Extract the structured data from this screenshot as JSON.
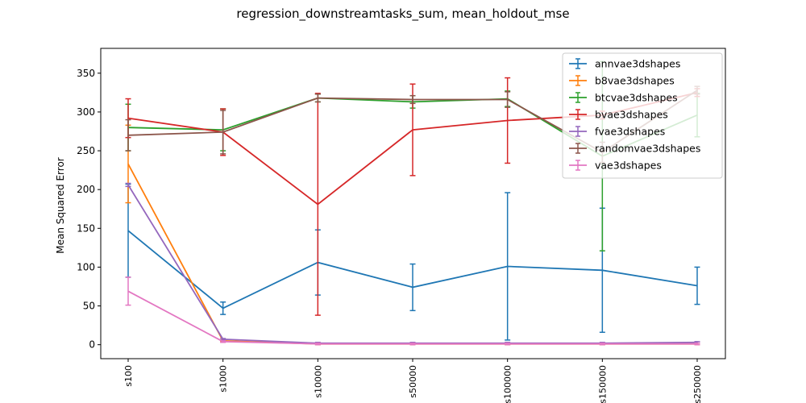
{
  "chart_data": {
    "type": "line",
    "title": "regression_downstreamtasks_sum, mean_holdout_mse",
    "xlabel": "",
    "ylabel": "Mean Squared Error",
    "categories": [
      "s100",
      "s1000",
      "s10000",
      "s50000",
      "s100000",
      "s150000",
      "s250000"
    ],
    "ylim": [
      -18,
      382
    ],
    "yticks": [
      0,
      50,
      100,
      150,
      200,
      250,
      300,
      350
    ],
    "grid": false,
    "legend_position": "top-right",
    "series": [
      {
        "name": "annvae3dshapes",
        "color": "#1f77b4",
        "values": [
          147,
          47,
          106,
          74,
          101,
          96,
          76
        ],
        "err": [
          60,
          8,
          42,
          30,
          95,
          80,
          24
        ]
      },
      {
        "name": "b8vae3dshapes",
        "color": "#ff7f0e",
        "values": [
          233,
          5,
          1,
          1,
          1,
          1,
          1
        ],
        "err": [
          50,
          1,
          1,
          1,
          1,
          1,
          1
        ]
      },
      {
        "name": "btcvae3dshapes",
        "color": "#2ca02c",
        "values": [
          280,
          277,
          318,
          313,
          317,
          243,
          296
        ],
        "err": [
          30,
          27,
          5,
          8,
          10,
          122,
          28
        ]
      },
      {
        "name": "bvae3dshapes",
        "color": "#d62728",
        "values": [
          292,
          274,
          181,
          277,
          289,
          296,
          325
        ],
        "err": [
          25,
          30,
          143,
          59,
          55,
          5,
          5
        ]
      },
      {
        "name": "fvae3dshapes",
        "color": "#9467bd",
        "values": [
          206,
          7,
          2,
          2,
          2,
          2,
          3
        ],
        "err": [
          2,
          1,
          1,
          1,
          1,
          1,
          1
        ]
      },
      {
        "name": "randomvae3dshapes",
        "color": "#8c564b",
        "values": [
          270,
          274,
          318,
          316,
          316,
          248,
          328
        ],
        "err": [
          20,
          28,
          5,
          5,
          10,
          13,
          5
        ]
      },
      {
        "name": "vae3dshapes",
        "color": "#e377c2",
        "values": [
          69,
          4,
          1,
          1,
          1,
          1,
          1
        ],
        "err": [
          18,
          1,
          1,
          1,
          1,
          1,
          1
        ]
      }
    ]
  }
}
